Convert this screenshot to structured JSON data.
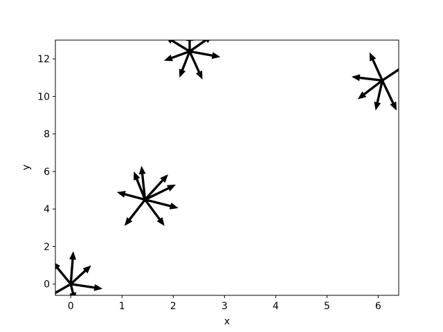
{
  "chart_data": {
    "type": "quiver",
    "xlabel": "x",
    "ylabel": "y",
    "xlim": [
      -0.3,
      6.4
    ],
    "ylim": [
      -0.6,
      13.0
    ],
    "xticks": [
      0,
      1,
      2,
      3,
      4,
      5,
      6
    ],
    "yticks": [
      0,
      2,
      4,
      6,
      8,
      10,
      12
    ],
    "arrow_color": "#000000",
    "clusters": [
      {
        "x": 0.0,
        "y": 0.0,
        "vectors": [
          [
            -0.36,
            1.2
          ],
          [
            0.05,
            1.75
          ],
          [
            0.4,
            1.0
          ],
          [
            0.62,
            -0.25
          ],
          [
            0.08,
            -0.9
          ],
          [
            -0.45,
            -0.7
          ]
        ]
      },
      {
        "x": 1.45,
        "y": 4.5,
        "vectors": [
          [
            -0.55,
            0.4
          ],
          [
            -0.22,
            1.5
          ],
          [
            -0.07,
            1.8
          ],
          [
            0.45,
            1.35
          ],
          [
            0.6,
            0.8
          ],
          [
            0.65,
            -0.45
          ],
          [
            0.38,
            -1.4
          ],
          [
            -0.4,
            -1.4
          ]
        ]
      },
      {
        "x": 2.32,
        "y": 12.4,
        "vectors": [
          [
            -0.48,
            0.8
          ],
          [
            0.0,
            1.0
          ],
          [
            0.45,
            0.85
          ],
          [
            0.6,
            -0.3
          ],
          [
            0.25,
            -1.5
          ],
          [
            -0.2,
            -1.4
          ],
          [
            -0.5,
            -0.5
          ]
        ]
      },
      {
        "x": 6.08,
        "y": 10.85,
        "vectors": [
          [
            -0.25,
            1.5
          ],
          [
            0.55,
            1.0
          ],
          [
            -0.6,
            0.2
          ],
          [
            -0.48,
            -1.0
          ],
          [
            -0.13,
            -1.6
          ],
          [
            0.28,
            -1.6
          ]
        ]
      }
    ]
  }
}
